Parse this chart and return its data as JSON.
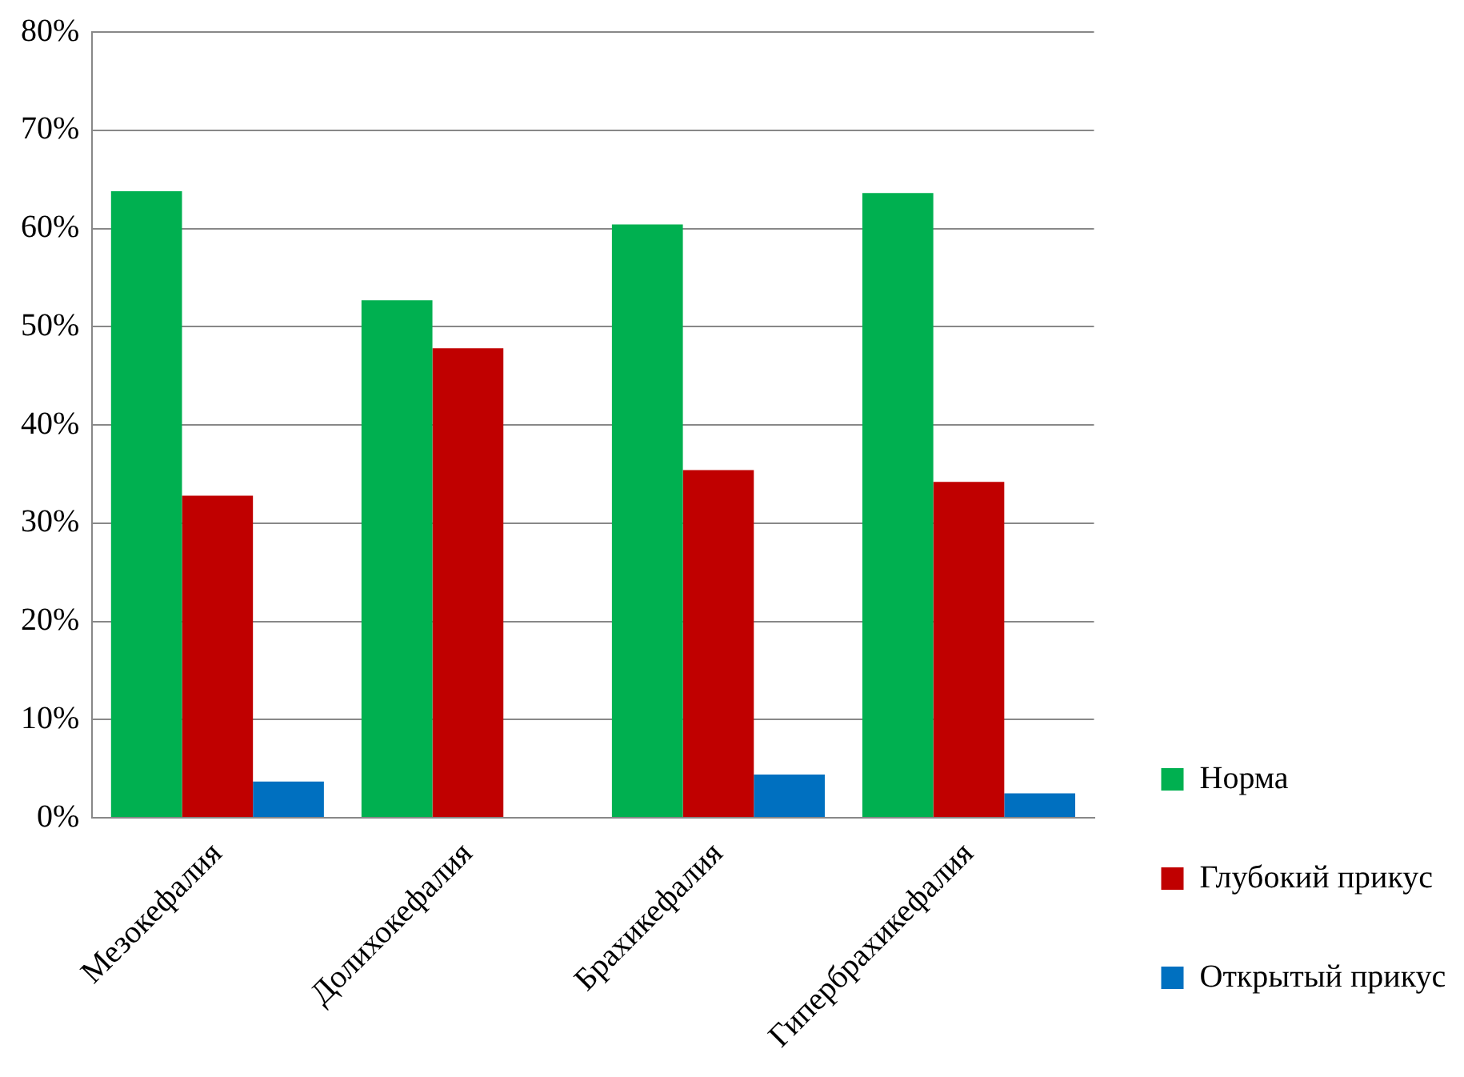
{
  "chart_data": {
    "type": "bar",
    "categories": [
      "Мезокефалия",
      "Долихокефалия",
      "Брахикефалия",
      "Гипербрахикефалия"
    ],
    "series": [
      {
        "name": "Норма",
        "color": "#00b050",
        "values": [
          63.8,
          52.7,
          60.4,
          63.6
        ]
      },
      {
        "name": "Глубокий прикус",
        "color": "#c00000",
        "values": [
          32.8,
          47.8,
          35.4,
          34.2
        ]
      },
      {
        "name": "Открытый прикус",
        "color": "#0070c0",
        "values": [
          3.7,
          0,
          4.4,
          2.5
        ]
      }
    ],
    "ylim": [
      0,
      80
    ],
    "yticks": [
      {
        "value": 0,
        "label": "0%"
      },
      {
        "value": 10,
        "label": "10%"
      },
      {
        "value": 20,
        "label": "20%"
      },
      {
        "value": 30,
        "label": "30%"
      },
      {
        "value": 40,
        "label": "40%"
      },
      {
        "value": 50,
        "label": "50%"
      },
      {
        "value": 60,
        "label": "60%"
      },
      {
        "value": 70,
        "label": "70%"
      },
      {
        "value": 80,
        "label": "80%"
      }
    ],
    "grid": "y",
    "legend": "bottom right"
  }
}
